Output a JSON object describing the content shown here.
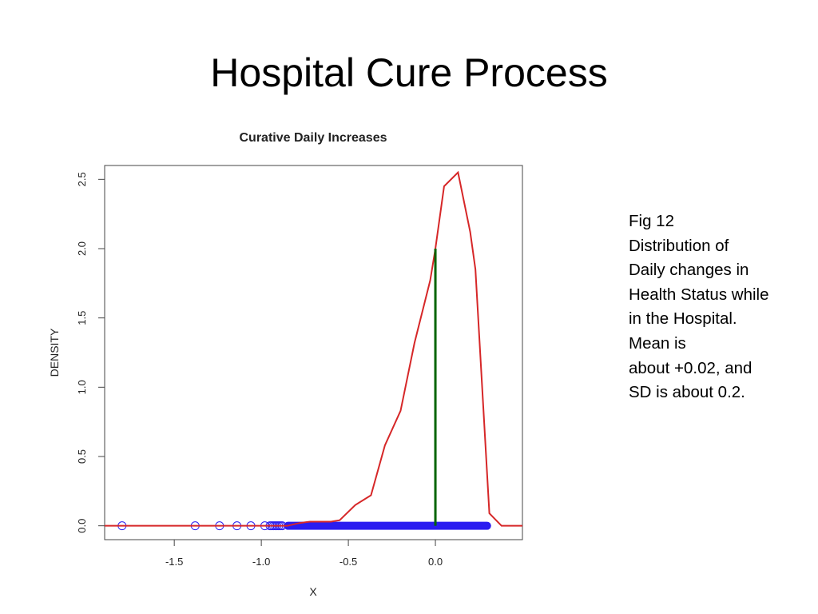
{
  "slide": {
    "title": "Hospital Cure Process",
    "caption_lines": [
      "Fig 12",
      "Distribution of",
      "Daily changes in",
      "Health Status while",
      "in the Hospital.",
      "Mean is",
      "about +0.02, and",
      "SD is about 0.2."
    ]
  },
  "chart_data": {
    "type": "line",
    "title": "Curative Daily Increases",
    "xlabel": "X",
    "ylabel": "DENSITY",
    "xlim": [
      -1.9,
      0.5
    ],
    "ylim": [
      -0.1,
      2.6
    ],
    "x_ticks": [
      "-1.5",
      "-1.0",
      "-0.5",
      "0.0"
    ],
    "x_tick_values": [
      -1.5,
      -1.0,
      -0.5,
      0.0
    ],
    "y_ticks": [
      "0.0",
      "0.5",
      "1.0",
      "1.5",
      "2.0",
      "2.5"
    ],
    "y_tick_values": [
      0.0,
      0.5,
      1.0,
      1.5,
      2.0,
      2.5
    ],
    "grid": false,
    "colors": {
      "density": "#d62728",
      "points": "#2a1cf0",
      "mean_line": "#006400",
      "frame": "#444444"
    },
    "series": [
      {
        "kind": "density-curve",
        "x": [
          -1.9,
          -0.85,
          -0.78,
          -0.72,
          -0.65,
          -0.6,
          -0.55,
          -0.46,
          -0.37,
          -0.29,
          -0.2,
          -0.12,
          -0.03,
          0.0,
          0.05,
          0.13,
          0.2,
          0.23,
          0.31,
          0.38,
          0.5
        ],
        "y": [
          0.0,
          0.0,
          0.02,
          0.03,
          0.03,
          0.03,
          0.04,
          0.15,
          0.22,
          0.58,
          0.83,
          1.32,
          1.77,
          2.0,
          2.45,
          2.55,
          2.12,
          1.85,
          0.09,
          0.0,
          0.0
        ]
      },
      {
        "kind": "rug-points",
        "x": [
          -1.8,
          -1.38,
          -1.24,
          -1.14,
          -1.06,
          -0.98,
          -0.95,
          -0.94,
          -0.93,
          -0.92,
          -0.91,
          -0.9,
          -0.89,
          -0.88
        ],
        "dense_range": [
          -0.87,
          0.32
        ],
        "y": 0.0
      },
      {
        "kind": "mean-line",
        "x": 0.0,
        "y_top": 2.0
      }
    ]
  }
}
